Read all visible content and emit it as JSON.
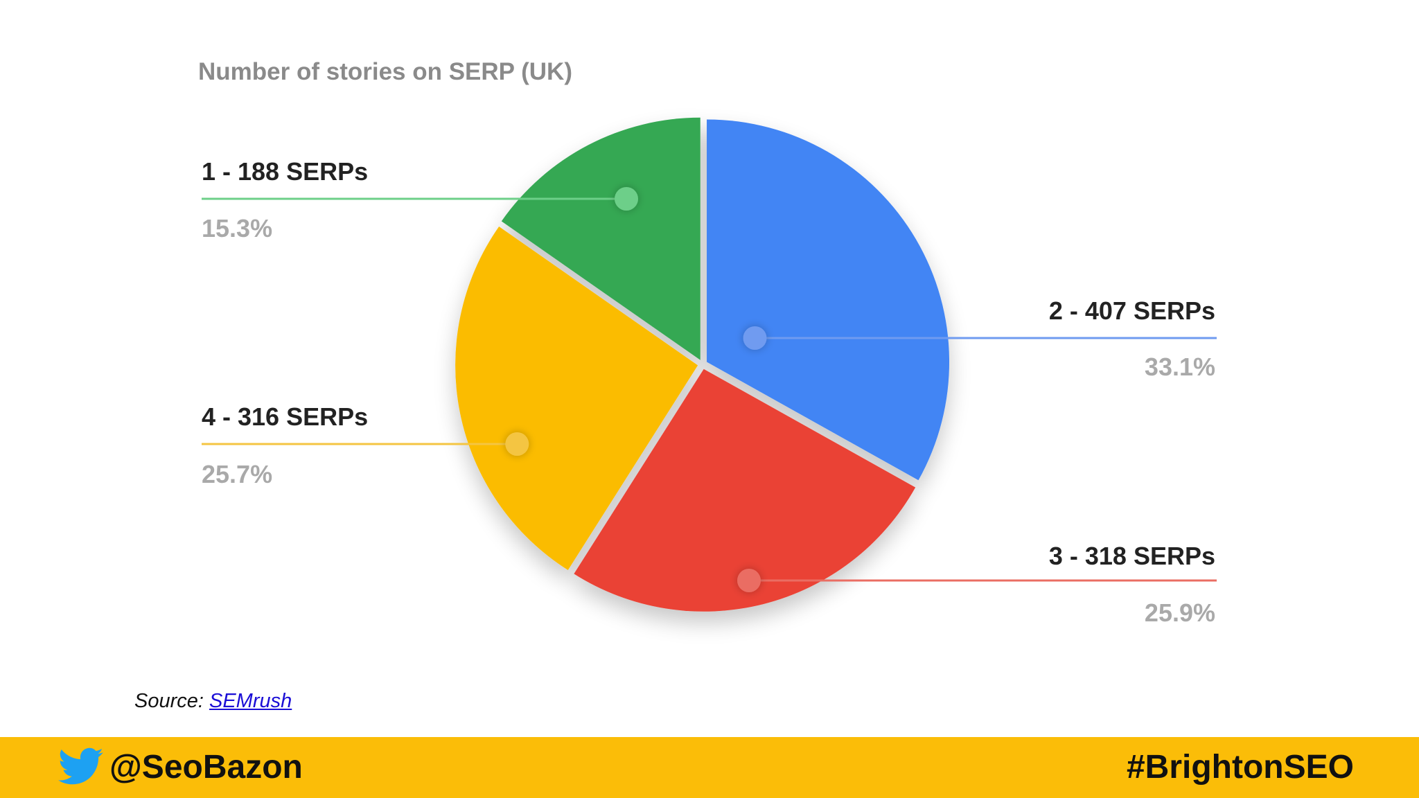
{
  "chart_data": {
    "type": "pie",
    "title": "Number of stories on SERP (UK)",
    "slices": [
      {
        "label": "2 - 407 SERPs",
        "value": 407,
        "percent": "33.1%",
        "color": "#4285f4",
        "line_color": "#6f9bf0"
      },
      {
        "label": "3 - 318 SERPs",
        "value": 318,
        "percent": "25.9%",
        "color": "#ea4335",
        "line_color": "#ea6d63"
      },
      {
        "label": "4 - 316 SERPs",
        "value": 316,
        "percent": "25.7%",
        "color": "#fbbc04",
        "line_color": "#f4c542"
      },
      {
        "label": "1 - 188 SERPs",
        "value": 188,
        "percent": "15.3%",
        "color": "#34a853",
        "line_color": "#6dcf89"
      }
    ],
    "legend": "callout labels beside slices"
  },
  "source": {
    "prefix": "Source: ",
    "link_text": "SEMrush"
  },
  "footer": {
    "twitter_icon": "twitter-bird-icon",
    "handle": "@SeoBazon",
    "hashtag": "#BrightonSEO",
    "bar_color": "#fbbd08",
    "icon_color": "#1da1f2"
  }
}
